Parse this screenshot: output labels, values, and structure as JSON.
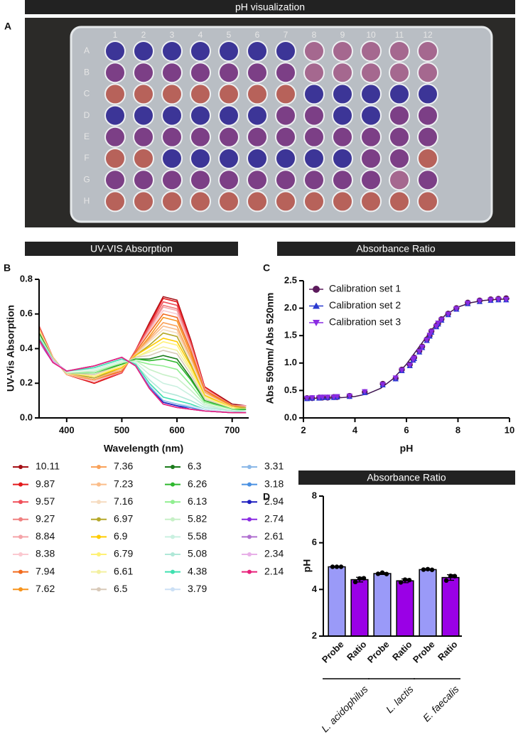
{
  "headers": [
    "pH visualization",
    "UV-VIS Absorption",
    "Absorbance Ratio",
    "Absorbance Ratio"
  ],
  "panel_labels": [
    "A",
    "B",
    "C",
    "D"
  ],
  "photo": {
    "rows": [
      "A",
      "B",
      "C",
      "D",
      "E",
      "F",
      "G",
      "H"
    ],
    "columns": [
      "1",
      "2",
      "3",
      "4",
      "5",
      "6",
      "7",
      "8",
      "9",
      "10",
      "11",
      "12"
    ]
  },
  "chart_data": [
    {
      "type": "line",
      "xlabel": "Wavelength (nm)",
      "ylabel": "UV-Vis Absorption",
      "x": [
        350,
        375,
        400,
        450,
        500,
        525,
        550,
        575,
        600,
        625,
        650,
        700,
        725
      ],
      "xlim": [
        350,
        730
      ],
      "ylim": [
        0,
        0.8
      ],
      "xticks": [
        400,
        500,
        600,
        700
      ],
      "yticks": [
        {
          "value": 0,
          "label": "0.0"
        },
        {
          "value": 0.2,
          "label": "0.2"
        },
        {
          "value": 0.4,
          "label": "0.4"
        },
        {
          "value": 0.6,
          "label": "0.6"
        },
        {
          "value": 0.8,
          "label": "0.8"
        }
      ],
      "series": [
        {
          "name": "10.11",
          "color": "#a50f15",
          "values": [
            0.53,
            0.35,
            0.25,
            0.2,
            0.26,
            0.39,
            0.55,
            0.7,
            0.68,
            0.45,
            0.18,
            0.08,
            0.07
          ]
        },
        {
          "name": "9.87",
          "color": "#e31a1c",
          "values": [
            0.53,
            0.35,
            0.25,
            0.2,
            0.26,
            0.39,
            0.54,
            0.69,
            0.67,
            0.44,
            0.18,
            0.07,
            0.07
          ]
        },
        {
          "name": "9.57",
          "color": "#f0505a",
          "values": [
            0.53,
            0.35,
            0.25,
            0.21,
            0.26,
            0.39,
            0.53,
            0.67,
            0.65,
            0.43,
            0.17,
            0.07,
            0.07
          ]
        },
        {
          "name": "9.27",
          "color": "#f08080",
          "values": [
            0.52,
            0.35,
            0.25,
            0.21,
            0.27,
            0.38,
            0.52,
            0.65,
            0.63,
            0.42,
            0.17,
            0.07,
            0.07
          ]
        },
        {
          "name": "8.84",
          "color": "#f5a3a8",
          "values": [
            0.52,
            0.35,
            0.25,
            0.21,
            0.27,
            0.38,
            0.51,
            0.64,
            0.62,
            0.41,
            0.17,
            0.07,
            0.07
          ]
        },
        {
          "name": "8.38",
          "color": "#fbc9d0",
          "values": [
            0.52,
            0.35,
            0.25,
            0.21,
            0.27,
            0.38,
            0.5,
            0.62,
            0.6,
            0.4,
            0.16,
            0.07,
            0.06
          ]
        },
        {
          "name": "7.94",
          "color": "#f26b1d",
          "values": [
            0.52,
            0.35,
            0.25,
            0.22,
            0.27,
            0.38,
            0.49,
            0.6,
            0.58,
            0.39,
            0.16,
            0.07,
            0.06
          ]
        },
        {
          "name": "7.62",
          "color": "#f7941d",
          "values": [
            0.51,
            0.35,
            0.25,
            0.22,
            0.28,
            0.37,
            0.47,
            0.58,
            0.56,
            0.37,
            0.15,
            0.07,
            0.06
          ]
        },
        {
          "name": "7.36",
          "color": "#f9a25a",
          "values": [
            0.51,
            0.35,
            0.25,
            0.22,
            0.28,
            0.37,
            0.46,
            0.55,
            0.53,
            0.35,
            0.15,
            0.06,
            0.06
          ]
        },
        {
          "name": "7.23",
          "color": "#fbbd8a",
          "values": [
            0.51,
            0.35,
            0.25,
            0.23,
            0.28,
            0.37,
            0.45,
            0.53,
            0.51,
            0.34,
            0.14,
            0.06,
            0.06
          ]
        },
        {
          "name": "7.16",
          "color": "#f6dcc0",
          "values": [
            0.51,
            0.34,
            0.26,
            0.23,
            0.29,
            0.36,
            0.44,
            0.51,
            0.49,
            0.33,
            0.14,
            0.06,
            0.06
          ]
        },
        {
          "name": "6.97",
          "color": "#b5a82a",
          "values": [
            0.5,
            0.34,
            0.26,
            0.23,
            0.29,
            0.36,
            0.42,
            0.49,
            0.47,
            0.31,
            0.13,
            0.06,
            0.06
          ]
        },
        {
          "name": "6.9",
          "color": "#ffcc00",
          "values": [
            0.5,
            0.34,
            0.26,
            0.24,
            0.29,
            0.36,
            0.41,
            0.46,
            0.44,
            0.3,
            0.13,
            0.06,
            0.05
          ]
        },
        {
          "name": "6.79",
          "color": "#fff176",
          "values": [
            0.5,
            0.34,
            0.26,
            0.24,
            0.3,
            0.35,
            0.39,
            0.44,
            0.42,
            0.28,
            0.12,
            0.06,
            0.05
          ]
        },
        {
          "name": "6.61",
          "color": "#f3f0a0",
          "values": [
            0.49,
            0.34,
            0.26,
            0.25,
            0.3,
            0.35,
            0.38,
            0.41,
            0.39,
            0.27,
            0.12,
            0.05,
            0.05
          ]
        },
        {
          "name": "6.5",
          "color": "#d8c9b8",
          "values": [
            0.49,
            0.34,
            0.26,
            0.25,
            0.31,
            0.35,
            0.36,
            0.39,
            0.37,
            0.25,
            0.11,
            0.05,
            0.05
          ]
        },
        {
          "name": "6.3",
          "color": "#1a7a1a",
          "values": [
            0.49,
            0.34,
            0.26,
            0.26,
            0.31,
            0.34,
            0.34,
            0.36,
            0.34,
            0.23,
            0.1,
            0.05,
            0.05
          ]
        },
        {
          "name": "6.26",
          "color": "#2eb82e",
          "values": [
            0.48,
            0.34,
            0.26,
            0.26,
            0.31,
            0.34,
            0.33,
            0.34,
            0.32,
            0.22,
            0.1,
            0.05,
            0.05
          ]
        },
        {
          "name": "6.13",
          "color": "#90ee90",
          "values": [
            0.48,
            0.34,
            0.26,
            0.26,
            0.32,
            0.33,
            0.31,
            0.3,
            0.28,
            0.19,
            0.09,
            0.05,
            0.04
          ]
        },
        {
          "name": "5.82",
          "color": "#c7f0c7",
          "values": [
            0.47,
            0.34,
            0.26,
            0.27,
            0.32,
            0.33,
            0.28,
            0.25,
            0.23,
            0.16,
            0.08,
            0.04,
            0.04
          ]
        },
        {
          "name": "5.58",
          "color": "#c9f0e0",
          "values": [
            0.47,
            0.33,
            0.27,
            0.28,
            0.33,
            0.32,
            0.25,
            0.2,
            0.18,
            0.13,
            0.07,
            0.04,
            0.04
          ]
        },
        {
          "name": "5.08",
          "color": "#b0e8d8",
          "values": [
            0.46,
            0.33,
            0.27,
            0.29,
            0.34,
            0.31,
            0.22,
            0.15,
            0.13,
            0.1,
            0.06,
            0.04,
            0.03
          ]
        },
        {
          "name": "4.38",
          "color": "#40e0b0",
          "values": [
            0.46,
            0.33,
            0.27,
            0.29,
            0.34,
            0.31,
            0.2,
            0.12,
            0.1,
            0.08,
            0.05,
            0.03,
            0.03
          ]
        },
        {
          "name": "3.79",
          "color": "#cce0f5",
          "values": [
            0.45,
            0.33,
            0.27,
            0.3,
            0.35,
            0.3,
            0.19,
            0.1,
            0.08,
            0.07,
            0.05,
            0.03,
            0.03
          ]
        },
        {
          "name": "3.31",
          "color": "#8bb8e8",
          "values": [
            0.45,
            0.33,
            0.27,
            0.3,
            0.35,
            0.3,
            0.18,
            0.1,
            0.08,
            0.06,
            0.04,
            0.03,
            0.03
          ]
        },
        {
          "name": "3.18",
          "color": "#4a90e2",
          "values": [
            0.45,
            0.33,
            0.27,
            0.3,
            0.35,
            0.3,
            0.18,
            0.09,
            0.07,
            0.06,
            0.04,
            0.03,
            0.03
          ]
        },
        {
          "name": "2.94",
          "color": "#1f1fbf",
          "values": [
            0.45,
            0.33,
            0.27,
            0.3,
            0.35,
            0.3,
            0.17,
            0.09,
            0.07,
            0.05,
            0.04,
            0.03,
            0.03
          ]
        },
        {
          "name": "2.74",
          "color": "#8a2be2",
          "values": [
            0.44,
            0.32,
            0.27,
            0.3,
            0.35,
            0.3,
            0.17,
            0.08,
            0.06,
            0.05,
            0.04,
            0.03,
            0.03
          ]
        },
        {
          "name": "2.61",
          "color": "#b070d0",
          "values": [
            0.45,
            0.33,
            0.27,
            0.3,
            0.35,
            0.3,
            0.17,
            0.08,
            0.06,
            0.05,
            0.04,
            0.03,
            0.03
          ]
        },
        {
          "name": "2.34",
          "color": "#e8b0e8",
          "values": [
            0.44,
            0.33,
            0.27,
            0.3,
            0.35,
            0.3,
            0.17,
            0.08,
            0.06,
            0.05,
            0.04,
            0.03,
            0.03
          ]
        },
        {
          "name": "2.14",
          "color": "#e8207a",
          "values": [
            0.45,
            0.32,
            0.27,
            0.3,
            0.35,
            0.3,
            0.17,
            0.08,
            0.06,
            0.05,
            0.04,
            0.03,
            0.03
          ]
        }
      ]
    },
    {
      "type": "scatter",
      "xlabel": "pH",
      "ylabel": "Abs 590nm/ Abs 520nm",
      "xlim": [
        2,
        10
      ],
      "ylim": [
        0,
        2.5
      ],
      "xticks": [
        2,
        4,
        6,
        8,
        10
      ],
      "yticks": [
        {
          "value": 0,
          "label": "0.0"
        },
        {
          "value": 0.5,
          "label": "0.5"
        },
        {
          "value": 1,
          "label": "1.0"
        },
        {
          "value": 1.5,
          "label": "1.5"
        },
        {
          "value": 2,
          "label": "2.0"
        },
        {
          "value": 2.5,
          "label": "2.5"
        }
      ],
      "legend": "upper left",
      "x": [
        2.14,
        2.34,
        2.61,
        2.74,
        2.94,
        3.18,
        3.31,
        3.79,
        4.38,
        5.08,
        5.58,
        5.82,
        6.13,
        6.26,
        6.3,
        6.5,
        6.61,
        6.79,
        6.9,
        6.97,
        7.16,
        7.23,
        7.36,
        7.62,
        7.94,
        8.38,
        8.84,
        9.27,
        9.57,
        9.87
      ],
      "series": [
        {
          "name": "Calibration set 1",
          "color": "#5c1a5c",
          "marker": "circle",
          "values": [
            0.36,
            0.36,
            0.37,
            0.37,
            0.37,
            0.38,
            0.38,
            0.4,
            0.47,
            0.62,
            0.72,
            0.88,
            0.97,
            1.07,
            1.1,
            1.22,
            1.3,
            1.43,
            1.5,
            1.58,
            1.68,
            1.72,
            1.8,
            1.9,
            2.0,
            2.1,
            2.14,
            2.16,
            2.17,
            2.18
          ]
        },
        {
          "name": "Calibration set 2",
          "color": "#2a3ad0",
          "marker": "triangle-up",
          "values": [
            0.35,
            0.36,
            0.36,
            0.37,
            0.37,
            0.37,
            0.38,
            0.39,
            0.46,
            0.6,
            0.71,
            0.86,
            0.95,
            1.05,
            1.08,
            1.2,
            1.28,
            1.41,
            1.49,
            1.56,
            1.66,
            1.71,
            1.78,
            1.88,
            1.98,
            2.08,
            2.12,
            2.14,
            2.15,
            2.15
          ]
        },
        {
          "name": "Calibration set 3",
          "color": "#8a2be2",
          "marker": "triangle-down",
          "values": [
            0.36,
            0.37,
            0.37,
            0.38,
            0.38,
            0.38,
            0.39,
            0.4,
            0.48,
            0.61,
            0.73,
            0.87,
            0.96,
            1.06,
            1.09,
            1.21,
            1.29,
            1.42,
            1.51,
            1.57,
            1.67,
            1.73,
            1.79,
            1.89,
            1.99,
            2.09,
            2.13,
            2.15,
            2.16,
            2.16
          ]
        }
      ],
      "fit": {
        "color": "#3d1450",
        "x": [
          2,
          2.5,
          3,
          3.5,
          4,
          4.5,
          5,
          5.5,
          6,
          6.5,
          7,
          7.5,
          8,
          8.5,
          9,
          9.5,
          10
        ],
        "values": [
          0.35,
          0.36,
          0.36,
          0.37,
          0.39,
          0.44,
          0.54,
          0.72,
          0.98,
          1.3,
          1.62,
          1.87,
          2.02,
          2.1,
          2.14,
          2.16,
          2.17
        ]
      }
    },
    {
      "type": "bar",
      "ylabel": "pH",
      "ylim": [
        2,
        8
      ],
      "yticks": [
        2,
        4,
        6,
        8
      ],
      "categories": [
        "Probe",
        "Ratio",
        "Probe",
        "Ratio",
        "Probe",
        "Ratio"
      ],
      "groups": [
        "L. acidophilus",
        "L. lactis",
        "E. faecalis"
      ],
      "colors": [
        "#9a9af8",
        "#9a00e6",
        "#9a9af8",
        "#9a00e6",
        "#9a9af8",
        "#9a00e6"
      ],
      "values": [
        4.97,
        4.42,
        4.68,
        4.37,
        4.85,
        4.51
      ],
      "errors": [
        0.02,
        0.1,
        0.04,
        0.08,
        0.03,
        0.12
      ],
      "replicates": [
        [
          4.97,
          4.97,
          4.97
        ],
        [
          4.32,
          4.47,
          4.48
        ],
        [
          4.67,
          4.72,
          4.66
        ],
        [
          4.3,
          4.42,
          4.4
        ],
        [
          4.85,
          4.87,
          4.84
        ],
        [
          4.38,
          4.58,
          4.57
        ]
      ]
    }
  ]
}
